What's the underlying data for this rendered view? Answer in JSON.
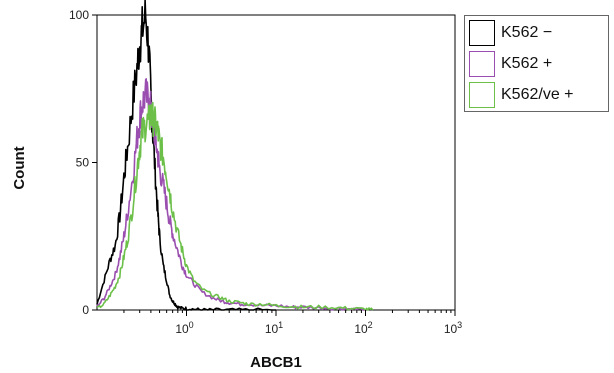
{
  "chart_data": {
    "type": "line",
    "xlabel": "ABCB1",
    "ylabel": "Count",
    "xscale": "log",
    "xlim": [
      0.1,
      1000
    ],
    "ylim": [
      0,
      100
    ],
    "yticks": [
      0,
      50,
      100
    ],
    "xticks": [
      {
        "value": 1,
        "base": "10",
        "exp": "0"
      },
      {
        "value": 10,
        "base": "10",
        "exp": "1"
      },
      {
        "value": 100,
        "base": "10",
        "exp": "2"
      },
      {
        "value": 1000,
        "base": "10",
        "exp": "3"
      }
    ],
    "grid": false,
    "legend_position": "top-right-outside",
    "series": [
      {
        "name": "K562 −",
        "color": "#000000",
        "x": [
          0.1,
          0.12,
          0.14,
          0.16,
          0.18,
          0.2,
          0.22,
          0.25,
          0.28,
          0.3,
          0.32,
          0.35,
          0.38,
          0.4,
          0.42,
          0.45,
          0.48,
          0.5,
          0.55,
          0.6,
          0.65,
          0.7,
          0.75,
          0.8,
          0.9,
          1.0,
          1.2,
          1.5,
          2,
          3,
          5,
          10
        ],
        "y": [
          2,
          10,
          17,
          22,
          32,
          45,
          55,
          70,
          82,
          90,
          95,
          100,
          88,
          72,
          60,
          45,
          32,
          25,
          15,
          10,
          5,
          3,
          2,
          1,
          0.5,
          0.5,
          0.3,
          0,
          0,
          0,
          0,
          0
        ]
      },
      {
        "name": "K562 +",
        "color": "#9a4fb0",
        "x": [
          0.1,
          0.12,
          0.14,
          0.16,
          0.18,
          0.2,
          0.22,
          0.25,
          0.28,
          0.3,
          0.32,
          0.35,
          0.38,
          0.4,
          0.42,
          0.45,
          0.48,
          0.5,
          0.55,
          0.6,
          0.65,
          0.7,
          0.8,
          0.9,
          1.0,
          1.2,
          1.5,
          2,
          2.5,
          3,
          4,
          5,
          7,
          10,
          15,
          20,
          30,
          50,
          70,
          100
        ],
        "y": [
          1,
          4,
          8,
          12,
          18,
          25,
          33,
          45,
          58,
          65,
          70,
          73,
          70,
          68,
          64,
          58,
          52,
          48,
          42,
          36,
          30,
          26,
          20,
          15,
          12,
          9,
          6,
          4,
          3,
          2.5,
          2,
          2,
          1.5,
          1.5,
          1,
          1,
          0.8,
          0.5,
          0.3,
          0
        ]
      },
      {
        "name": "K562/ve +",
        "color": "#6cc04a",
        "x": [
          0.1,
          0.12,
          0.14,
          0.16,
          0.18,
          0.2,
          0.22,
          0.25,
          0.28,
          0.3,
          0.32,
          0.35,
          0.38,
          0.4,
          0.42,
          0.45,
          0.48,
          0.5,
          0.55,
          0.6,
          0.65,
          0.7,
          0.8,
          0.9,
          1.0,
          1.2,
          1.5,
          2,
          2.5,
          3,
          4,
          5,
          7,
          10,
          15,
          20,
          30,
          50,
          70,
          100,
          120
        ],
        "y": [
          0.5,
          2,
          5,
          8,
          12,
          18,
          24,
          35,
          48,
          55,
          60,
          63,
          64,
          66,
          65,
          63,
          60,
          57,
          52,
          46,
          40,
          34,
          26,
          20,
          15,
          10,
          7,
          5,
          4,
          3,
          2.5,
          2,
          2,
          1.5,
          1.2,
          1,
          1,
          0.8,
          0.5,
          0.3,
          0
        ]
      }
    ]
  }
}
